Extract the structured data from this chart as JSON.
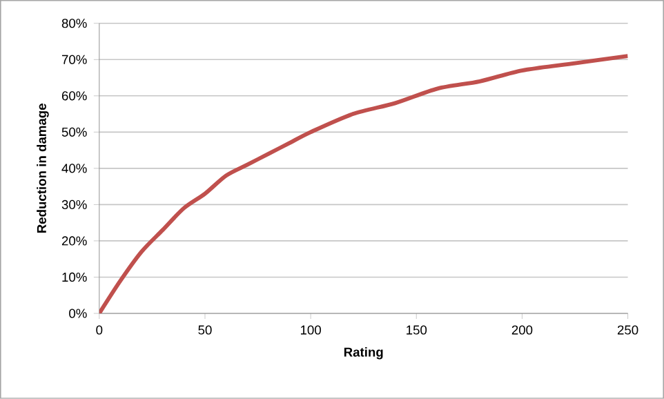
{
  "chart_data": {
    "type": "line",
    "xlabel": "Rating",
    "ylabel": "Reduction in damage",
    "series": [
      {
        "color": "#c0504d",
        "x": [
          0,
          10,
          20,
          30,
          40,
          50,
          60,
          70,
          80,
          90,
          100,
          120,
          140,
          160,
          180,
          200,
          225,
          250
        ],
        "values": [
          0,
          9,
          17,
          23,
          29,
          33,
          38,
          41,
          44,
          47,
          50,
          55,
          58,
          62,
          64,
          67,
          69,
          71
        ]
      }
    ],
    "xlim": [
      0,
      250
    ],
    "xticks": [
      0,
      50,
      100,
      150,
      200,
      250
    ],
    "ylim": [
      0,
      80
    ],
    "yticks": [
      {
        "value": 0,
        "label": "0%"
      },
      {
        "value": 10,
        "label": "10%"
      },
      {
        "value": 20,
        "label": "20%"
      },
      {
        "value": 30,
        "label": "30%"
      },
      {
        "value": 40,
        "label": "40%"
      },
      {
        "value": 50,
        "label": "50%"
      },
      {
        "value": 60,
        "label": "60%"
      },
      {
        "value": 70,
        "label": "70%"
      },
      {
        "value": 80,
        "label": "80%"
      }
    ],
    "grid": "y",
    "marker": "none",
    "line_style": "solid"
  }
}
